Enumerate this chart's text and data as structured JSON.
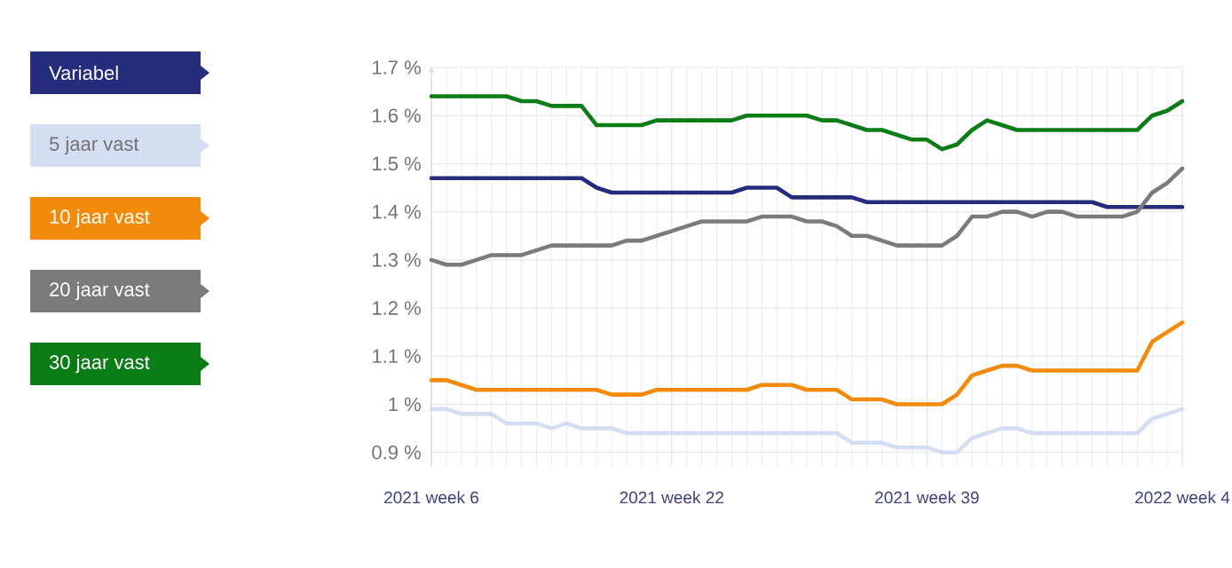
{
  "chart_data": {
    "type": "line",
    "categories": [
      "2021 week 6",
      null,
      null,
      null,
      null,
      null,
      null,
      null,
      null,
      null,
      null,
      null,
      null,
      null,
      null,
      null,
      "2021 week 22",
      null,
      null,
      null,
      null,
      null,
      null,
      null,
      null,
      null,
      null,
      null,
      null,
      null,
      null,
      null,
      null,
      "2021 week 39",
      null,
      null,
      null,
      null,
      null,
      null,
      null,
      null,
      null,
      null,
      null,
      null,
      null,
      null,
      null,
      null,
      "2022 week 4"
    ],
    "series": [
      {
        "name": "Variabel",
        "color": "#252c7c",
        "values": [
          1.47,
          1.47,
          1.47,
          1.47,
          1.47,
          1.47,
          1.47,
          1.47,
          1.47,
          1.47,
          1.47,
          1.45,
          1.44,
          1.44,
          1.44,
          1.44,
          1.44,
          1.44,
          1.44,
          1.44,
          1.44,
          1.45,
          1.45,
          1.45,
          1.43,
          1.43,
          1.43,
          1.43,
          1.43,
          1.42,
          1.42,
          1.42,
          1.42,
          1.42,
          1.42,
          1.42,
          1.42,
          1.42,
          1.42,
          1.42,
          1.42,
          1.42,
          1.42,
          1.42,
          1.42,
          1.41,
          1.41,
          1.41,
          1.41,
          1.41,
          1.41
        ]
      },
      {
        "name": "5 jaar vast",
        "color": "#d3def3",
        "values": [
          0.99,
          0.99,
          0.98,
          0.98,
          0.98,
          0.96,
          0.96,
          0.96,
          0.95,
          0.96,
          0.95,
          0.95,
          0.95,
          0.94,
          0.94,
          0.94,
          0.94,
          0.94,
          0.94,
          0.94,
          0.94,
          0.94,
          0.94,
          0.94,
          0.94,
          0.94,
          0.94,
          0.94,
          0.92,
          0.92,
          0.92,
          0.91,
          0.91,
          0.91,
          0.9,
          0.9,
          0.93,
          0.94,
          0.95,
          0.95,
          0.94,
          0.94,
          0.94,
          0.94,
          0.94,
          0.94,
          0.94,
          0.94,
          0.97,
          0.98,
          0.99
        ]
      },
      {
        "name": "10 jaar vast",
        "color": "#f28a0c",
        "values": [
          1.05,
          1.05,
          1.04,
          1.03,
          1.03,
          1.03,
          1.03,
          1.03,
          1.03,
          1.03,
          1.03,
          1.03,
          1.02,
          1.02,
          1.02,
          1.03,
          1.03,
          1.03,
          1.03,
          1.03,
          1.03,
          1.03,
          1.04,
          1.04,
          1.04,
          1.03,
          1.03,
          1.03,
          1.01,
          1.01,
          1.01,
          1.0,
          1.0,
          1.0,
          1.0,
          1.02,
          1.06,
          1.07,
          1.08,
          1.08,
          1.07,
          1.07,
          1.07,
          1.07,
          1.07,
          1.07,
          1.07,
          1.07,
          1.13,
          1.15,
          1.17
        ]
      },
      {
        "name": "20 jaar vast",
        "color": "#7b7b7b",
        "values": [
          1.3,
          1.29,
          1.29,
          1.3,
          1.31,
          1.31,
          1.31,
          1.32,
          1.33,
          1.33,
          1.33,
          1.33,
          1.33,
          1.34,
          1.34,
          1.35,
          1.36,
          1.37,
          1.38,
          1.38,
          1.38,
          1.38,
          1.39,
          1.39,
          1.39,
          1.38,
          1.38,
          1.37,
          1.35,
          1.35,
          1.34,
          1.33,
          1.33,
          1.33,
          1.33,
          1.35,
          1.39,
          1.39,
          1.4,
          1.4,
          1.39,
          1.4,
          1.4,
          1.39,
          1.39,
          1.39,
          1.39,
          1.4,
          1.44,
          1.46,
          1.49
        ]
      },
      {
        "name": "30 jaar vast",
        "color": "#0b7c16",
        "values": [
          1.64,
          1.64,
          1.64,
          1.64,
          1.64,
          1.64,
          1.63,
          1.63,
          1.62,
          1.62,
          1.62,
          1.58,
          1.58,
          1.58,
          1.58,
          1.59,
          1.59,
          1.59,
          1.59,
          1.59,
          1.59,
          1.6,
          1.6,
          1.6,
          1.6,
          1.6,
          1.59,
          1.59,
          1.58,
          1.57,
          1.57,
          1.56,
          1.55,
          1.55,
          1.53,
          1.54,
          1.57,
          1.59,
          1.58,
          1.57,
          1.57,
          1.57,
          1.57,
          1.57,
          1.57,
          1.57,
          1.57,
          1.57,
          1.6,
          1.61,
          1.63
        ]
      }
    ],
    "ylim": [
      0.87,
      1.7
    ],
    "yticks": [
      {
        "value": 0.9,
        "label": "0.9 %"
      },
      {
        "value": 1,
        "label": "1 %"
      },
      {
        "value": 1.1,
        "label": "1.1 %"
      },
      {
        "value": 1.2,
        "label": "1.2 %"
      },
      {
        "value": 1.3,
        "label": "1.3 %"
      },
      {
        "value": 1.4,
        "label": "1.4 %"
      },
      {
        "value": 1.5,
        "label": "1.5 %"
      },
      {
        "value": 1.6,
        "label": "1.6 %"
      },
      {
        "value": 1.7,
        "label": "1.7 %"
      }
    ],
    "grid": true,
    "legend": "left",
    "marker": "none",
    "line_style": "solid"
  }
}
